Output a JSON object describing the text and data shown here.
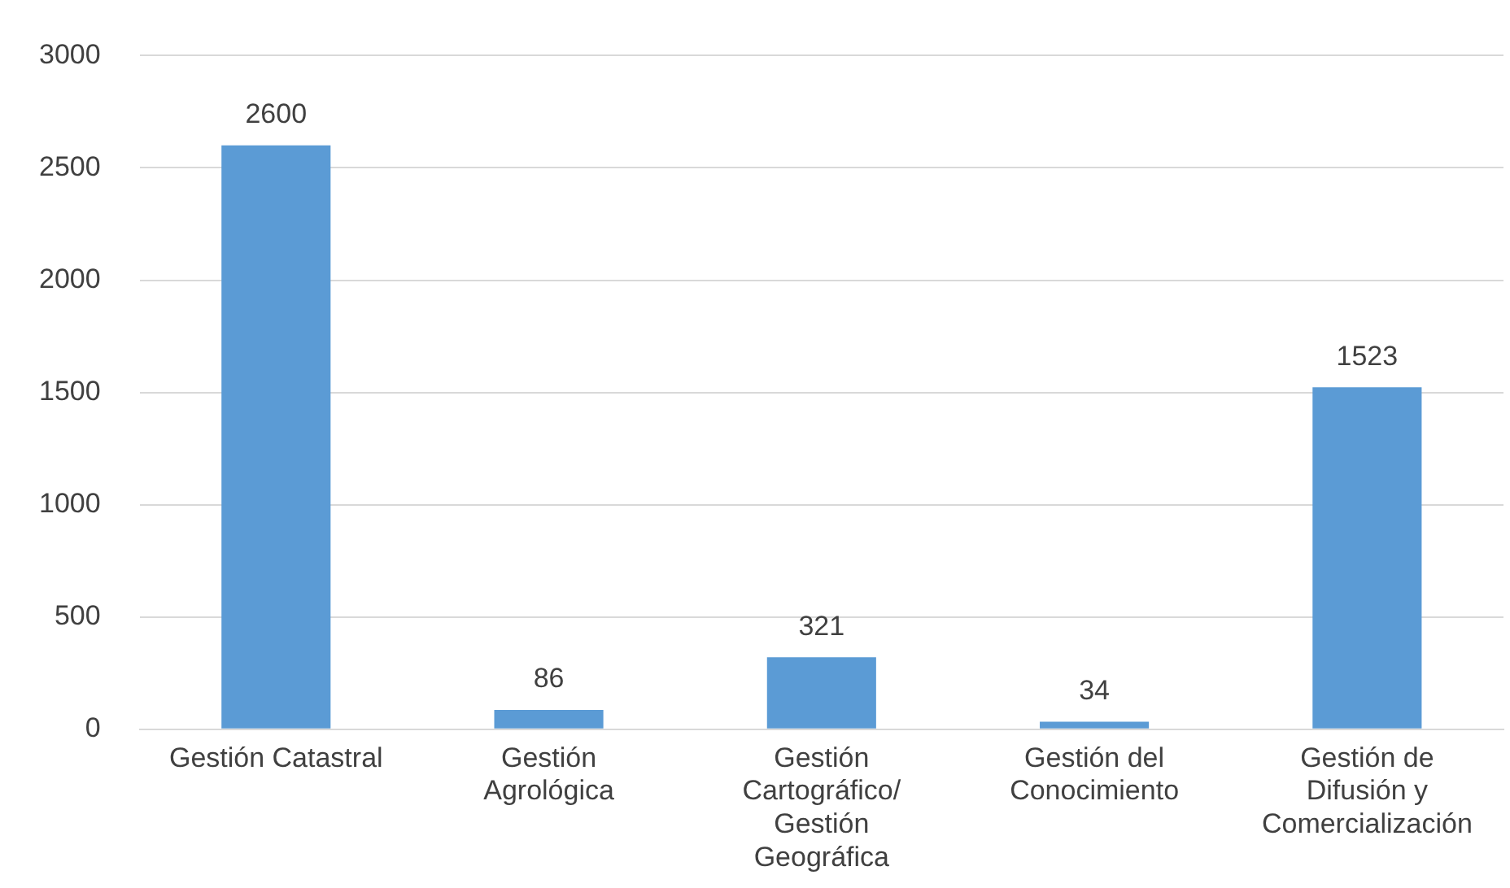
{
  "chart_data": {
    "type": "bar",
    "categories": [
      "Gestión Catastral",
      "Gestión Agrológica",
      "Gestión Cartográfico/ Gestión Geográfica",
      "Gestión del Conocimiento",
      "Gestión de Difusión y Comercialización"
    ],
    "values": [
      2600,
      86,
      321,
      34,
      1523
    ],
    "color": "#5b9bd5",
    "ylim": [
      0,
      3000
    ],
    "yticks": [
      0,
      500,
      1000,
      1500,
      2000,
      2500,
      3000
    ],
    "grid": "y",
    "data_labels": true,
    "legend": false
  }
}
